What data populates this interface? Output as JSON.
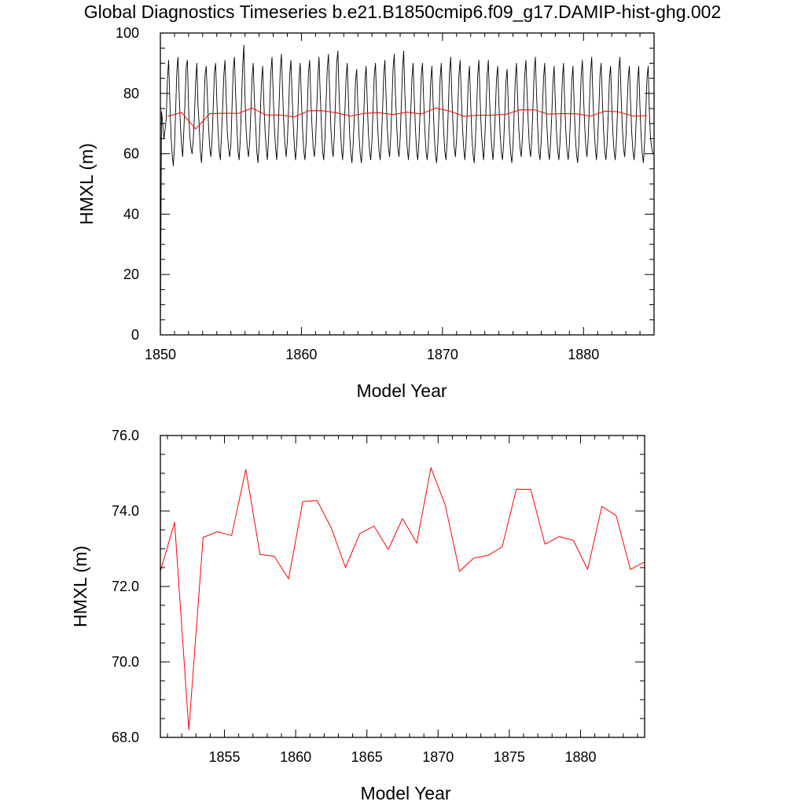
{
  "title": "Global Diagnostics Timeseries b.e21.B1850cmip6.f09_g17.DAMIP-hist-ghg.002",
  "colors": {
    "monthly": "#000000",
    "annual": "#ff0000",
    "frame": "#000000"
  },
  "chart_data": [
    {
      "type": "line",
      "xlabel": "Model Year",
      "ylabel": "HMXL (m)",
      "xlim": [
        1850,
        1885
      ],
      "ylim": [
        0,
        100
      ],
      "xticks": [
        1850,
        1860,
        1870,
        1880
      ],
      "xtick_labels": [
        "1850",
        "1860",
        "1870",
        "1880"
      ],
      "yticks": [
        0,
        20,
        40,
        60,
        80,
        100
      ],
      "ytick_labels": [
        "0",
        "20",
        "40",
        "60",
        "80",
        "100"
      ],
      "series": [
        {
          "style": "monthly",
          "x_start": 1850.0,
          "x_step": 0.08333,
          "values": [
            0,
            74,
            70,
            65,
            68,
            72,
            85,
            91,
            78,
            66,
            60,
            56,
            62,
            74,
            87,
            92,
            80,
            70,
            63,
            59,
            68,
            78,
            89,
            91,
            75,
            66,
            62,
            60,
            65,
            73,
            84,
            90,
            76,
            70,
            61,
            57,
            64,
            74,
            86,
            89,
            79,
            69,
            62,
            59,
            65,
            76,
            87,
            90,
            78,
            68,
            61,
            58,
            66,
            75,
            86,
            91,
            79,
            67,
            62,
            59,
            63,
            76,
            88,
            92,
            80,
            70,
            61,
            58,
            65,
            77,
            89,
            96,
            78,
            68,
            62,
            59,
            64,
            74,
            85,
            90,
            78,
            70,
            61,
            57,
            63,
            73,
            84,
            89,
            77,
            68,
            62,
            58,
            65,
            76,
            87,
            92,
            80,
            69,
            62,
            58,
            65,
            76,
            88,
            93,
            81,
            70,
            63,
            59,
            64,
            74,
            86,
            91,
            80,
            70,
            62,
            58,
            63,
            73,
            85,
            90,
            78,
            68,
            61,
            58,
            64,
            75,
            87,
            91,
            78,
            69,
            62,
            59,
            64,
            75,
            86,
            92,
            80,
            70,
            61,
            58,
            65,
            77,
            88,
            93,
            81,
            69,
            62,
            59,
            66,
            78,
            90,
            94,
            80,
            70,
            62,
            58,
            64,
            74,
            85,
            90,
            78,
            67,
            60,
            57,
            63,
            72,
            84,
            88,
            76,
            66,
            60,
            57,
            63,
            73,
            84,
            89,
            77,
            67,
            61,
            58,
            64,
            75,
            86,
            90,
            78,
            68,
            61,
            58,
            64,
            74,
            86,
            91,
            79,
            69,
            62,
            59,
            66,
            77,
            88,
            93,
            80,
            70,
            62,
            59,
            65,
            76,
            88,
            94,
            80,
            70,
            62,
            58,
            64,
            74,
            85,
            90,
            78,
            68,
            61,
            58,
            64,
            74,
            86,
            90,
            78,
            68,
            61,
            58,
            63,
            72,
            84,
            89,
            77,
            66,
            60,
            57,
            63,
            73,
            85,
            90,
            78,
            68,
            61,
            58,
            64,
            75,
            87,
            92,
            79,
            69,
            62,
            59,
            65,
            75,
            86,
            91,
            79,
            69,
            62,
            58,
            63,
            73,
            84,
            89,
            77,
            66,
            60,
            57,
            64,
            74,
            86,
            91,
            78,
            68,
            62,
            58,
            65,
            75,
            86,
            91,
            79,
            69,
            62,
            58,
            64,
            74,
            85,
            89,
            77,
            67,
            61,
            58,
            63,
            73,
            84,
            88,
            76,
            66,
            60,
            57,
            63,
            73,
            85,
            90,
            78,
            68,
            62,
            59,
            65,
            75,
            86,
            91,
            80,
            70,
            62,
            59,
            65,
            76,
            87,
            92,
            80,
            69,
            61,
            58,
            64,
            74,
            85,
            90,
            78,
            68,
            61,
            58,
            64,
            73,
            84,
            89,
            77,
            67,
            61,
            58,
            64,
            74,
            85,
            90,
            77,
            67,
            61,
            58,
            63,
            73,
            84,
            89,
            77,
            66,
            60,
            57,
            63,
            74,
            86,
            91,
            79,
            69,
            62,
            59,
            65,
            76,
            87,
            92,
            79,
            69,
            62,
            58,
            64,
            74,
            86,
            90,
            78,
            68,
            61,
            58,
            63,
            73,
            85,
            89,
            77,
            67,
            61,
            58,
            64,
            75,
            88,
            92,
            79,
            69,
            62,
            59,
            65,
            75,
            85,
            89,
            77,
            67,
            61,
            58,
            63,
            73,
            84,
            89,
            76,
            66,
            60,
            57,
            64,
            74,
            85,
            89,
            74,
            65,
            62,
            60
          ]
        },
        {
          "style": "annual",
          "x": [
            1850.5,
            1851.5,
            1852.5,
            1853.5,
            1854.5,
            1855.5,
            1856.5,
            1857.5,
            1858.5,
            1859.5,
            1860.5,
            1861.5,
            1862.5,
            1863.5,
            1864.5,
            1865.5,
            1866.5,
            1867.5,
            1868.5,
            1869.5,
            1870.5,
            1871.5,
            1872.5,
            1873.5,
            1874.5,
            1875.5,
            1876.5,
            1877.5,
            1878.5,
            1879.5,
            1880.5,
            1881.5,
            1882.5,
            1883.5,
            1884.5
          ],
          "values": [
            72.4,
            73.7,
            68.2,
            73.3,
            73.45,
            73.35,
            75.1,
            72.85,
            72.8,
            72.2,
            74.25,
            74.28,
            73.55,
            72.5,
            73.4,
            73.6,
            72.98,
            73.8,
            73.15,
            75.15,
            74.15,
            72.4,
            72.75,
            72.82,
            73.05,
            74.58,
            74.57,
            73.12,
            73.32,
            73.22,
            72.45,
            74.12,
            73.88,
            72.45,
            72.65
          ]
        }
      ]
    },
    {
      "type": "line",
      "xlabel": "Model Year",
      "ylabel": "HMXL (m)",
      "xlim": [
        1850.5,
        1884.5
      ],
      "ylim": [
        68,
        76
      ],
      "xticks": [
        1855,
        1860,
        1865,
        1870,
        1875,
        1880
      ],
      "xtick_labels": [
        "1855",
        "1860",
        "1865",
        "1870",
        "1875",
        "1880"
      ],
      "yticks": [
        68,
        70,
        72,
        74,
        76
      ],
      "ytick_labels": [
        "68.0",
        "70.0",
        "72.0",
        "74.0",
        "76.0"
      ],
      "series": [
        {
          "style": "annual",
          "x": [
            1850.5,
            1851.5,
            1852.5,
            1853.5,
            1854.5,
            1855.5,
            1856.5,
            1857.5,
            1858.5,
            1859.5,
            1860.5,
            1861.5,
            1862.5,
            1863.5,
            1864.5,
            1865.5,
            1866.5,
            1867.5,
            1868.5,
            1869.5,
            1870.5,
            1871.5,
            1872.5,
            1873.5,
            1874.5,
            1875.5,
            1876.5,
            1877.5,
            1878.5,
            1879.5,
            1880.5,
            1881.5,
            1882.5,
            1883.5,
            1884.5
          ],
          "values": [
            72.4,
            73.7,
            68.2,
            73.3,
            73.45,
            73.35,
            75.1,
            72.85,
            72.8,
            72.2,
            74.25,
            74.28,
            73.55,
            72.5,
            73.4,
            73.6,
            72.98,
            73.8,
            73.15,
            75.15,
            74.15,
            72.4,
            72.75,
            72.82,
            73.05,
            74.58,
            74.57,
            73.12,
            73.32,
            73.22,
            72.45,
            74.12,
            73.88,
            72.45,
            72.65
          ]
        }
      ]
    }
  ]
}
